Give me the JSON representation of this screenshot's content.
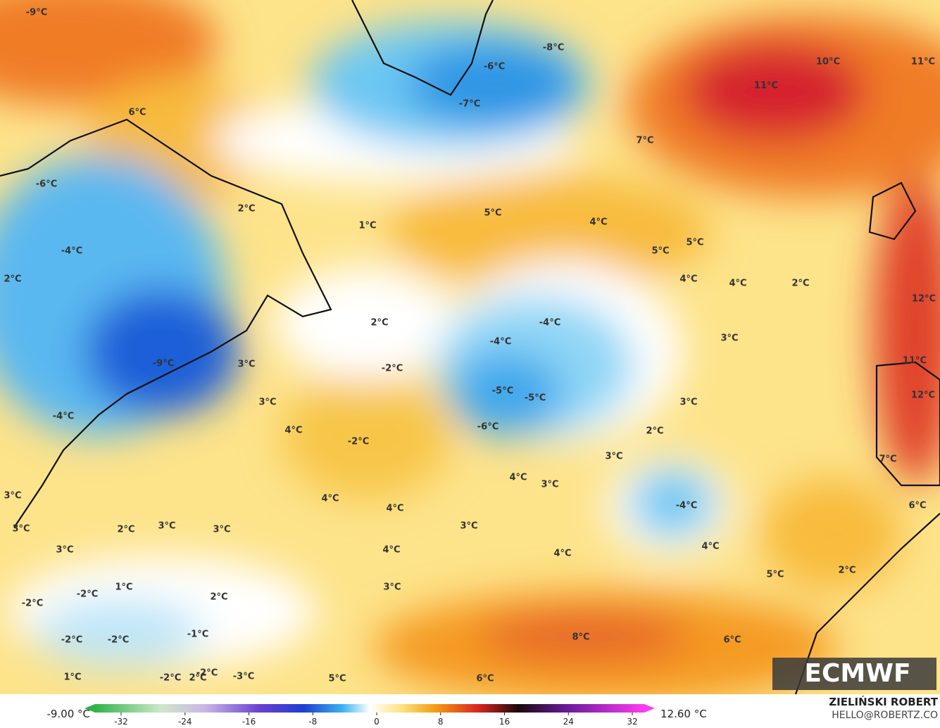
{
  "map": {
    "labels": [
      "-9°C",
      "6°C",
      "-6°C",
      "-4°C",
      "2°C",
      "2°C",
      "-9°C",
      "3°C",
      "3°C",
      "-4°C",
      "4°C",
      "-8°C",
      "-6°C",
      "-7°C",
      "10°C",
      "11°C",
      "11°C",
      "7°C",
      "5°C",
      "4°C",
      "1°C",
      "5°C",
      "5°C",
      "4°C",
      "4°C",
      "2°C",
      "12°C",
      "2°C",
      "-4°C",
      "-4°C",
      "3°C",
      "-2°C",
      "11°C",
      "-5°C",
      "-5°C",
      "3°C",
      "12°C",
      "-6°C",
      "2°C",
      "-2°C",
      "3°C",
      "7°C",
      "4°C",
      "3°C",
      "3°C",
      "4°C",
      "-4°C",
      "6°C",
      "4°C",
      "3°C",
      "2°C",
      "3°C",
      "3°C",
      "3°C",
      "3°C",
      "4°C",
      "4°C",
      "4°C",
      "5°C",
      "2°C",
      "-2°C",
      "1°C",
      "3°C",
      "2°C",
      "-2°C",
      "-1°C",
      "-2°C",
      "-2°C",
      "8°C",
      "6°C",
      "-2°C",
      "-3°C",
      "-2°C",
      "2°C",
      "1°C",
      "5°C",
      "6°C"
    ]
  },
  "legend": {
    "min_label": "-9.00 °C",
    "max_label": "12.60 °C",
    "ticks": [
      -32,
      -24,
      -16,
      -8,
      0,
      8,
      16,
      24,
      32
    ]
  },
  "logo": "ECMWF",
  "credit": {
    "name": "ZIELIŃSKI ROBERT",
    "email": "HELLO@ROBERTZ.CO"
  }
}
